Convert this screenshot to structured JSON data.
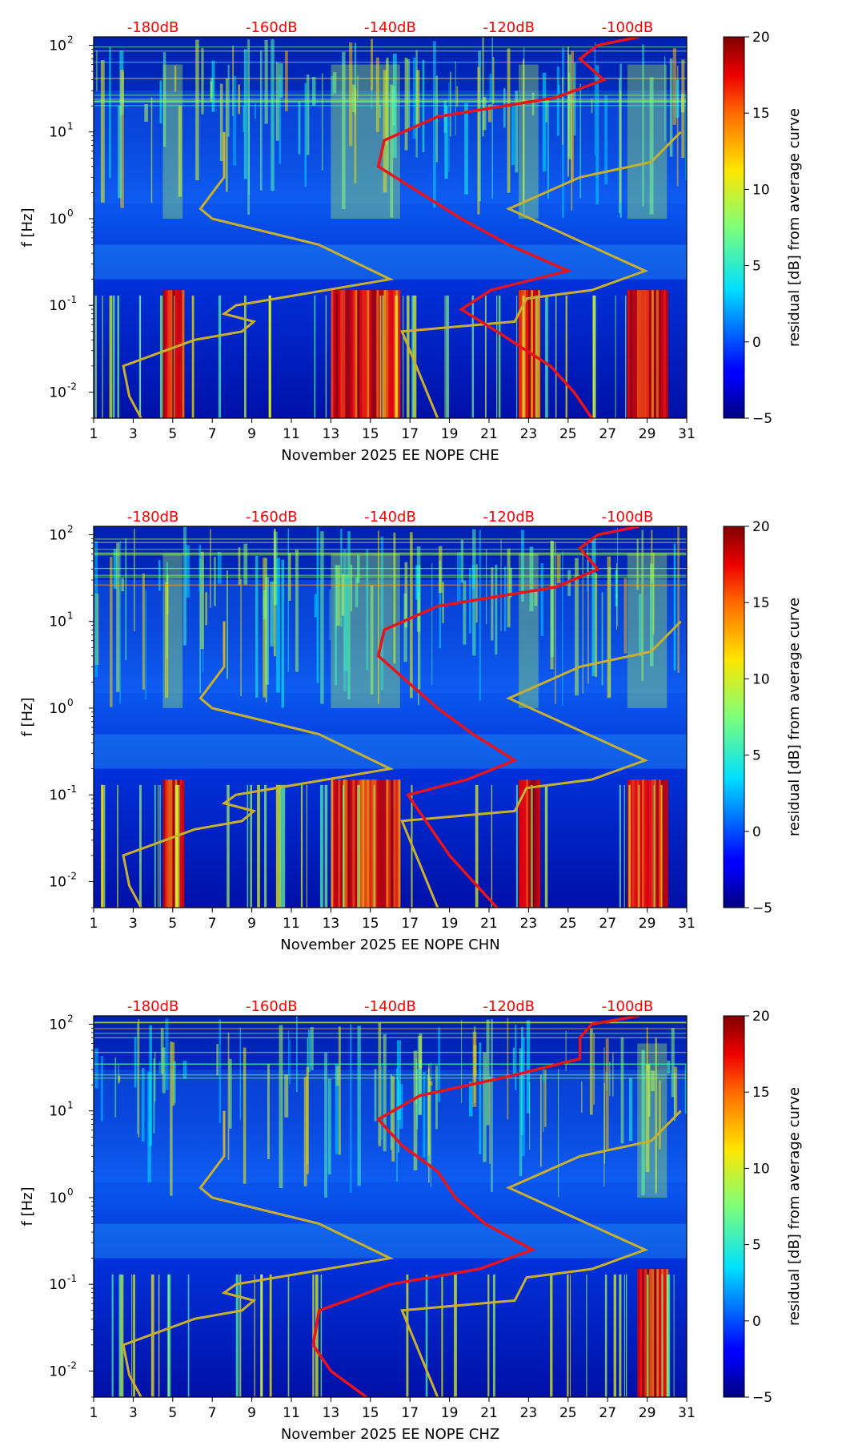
{
  "shared": {
    "y_axis_label": "f [Hz]",
    "y_ticks": [
      {
        "label_base": "10",
        "label_exp": "-2",
        "value": 0.01
      },
      {
        "label_base": "10",
        "label_exp": "-1",
        "value": 0.1
      },
      {
        "label_base": "10",
        "label_exp": "0",
        "value": 1
      },
      {
        "label_base": "10",
        "label_exp": "1",
        "value": 10
      },
      {
        "label_base": "10",
        "label_exp": "2",
        "value": 100
      }
    ],
    "x_ticks": [
      "1",
      "3",
      "5",
      "7",
      "9",
      "11",
      "13",
      "15",
      "17",
      "19",
      "21",
      "23",
      "25",
      "27",
      "29",
      "31"
    ],
    "top_db_labels": [
      "-180dB",
      "-160dB",
      "-140dB",
      "-120dB",
      "-100dB"
    ],
    "colorbar_label": "residual [dB] from average curve",
    "colorbar_ticks": [
      "20",
      "15",
      "10",
      "5",
      "0",
      "−5"
    ],
    "colors": {
      "db_label": "#ff0000",
      "psd_curve": "#e8141b",
      "noise_model": "#c8b02e"
    }
  },
  "chart_data": [
    {
      "type": "heatmap",
      "title": "",
      "xlabel": "November 2025 EE NOPE  CHE",
      "ylabel": "f [Hz]",
      "xlim": [
        1,
        31
      ],
      "ylim": [
        0.005,
        125
      ],
      "yscale": "log",
      "color_range": [
        -5,
        20
      ],
      "colormap": "jet",
      "overlay_db_axis": [
        -190,
        -90
      ],
      "high_residual_days": [
        [
          4.5,
          5.5
        ],
        [
          13,
          16.5
        ],
        [
          22.5,
          23.5
        ],
        [
          28,
          30
        ]
      ],
      "median_psd_db": [
        {
          "f": 0.005,
          "db": -106
        },
        {
          "f": 0.01,
          "db": -109
        },
        {
          "f": 0.02,
          "db": -113
        },
        {
          "f": 0.05,
          "db": -122
        },
        {
          "f": 0.09,
          "db": -128
        },
        {
          "f": 0.15,
          "db": -123
        },
        {
          "f": 0.25,
          "db": -110
        },
        {
          "f": 0.5,
          "db": -120
        },
        {
          "f": 1,
          "db": -128
        },
        {
          "f": 2,
          "db": -135
        },
        {
          "f": 4,
          "db": -142
        },
        {
          "f": 8,
          "db": -141
        },
        {
          "f": 15,
          "db": -132
        },
        {
          "f": 25,
          "db": -112
        },
        {
          "f": 40,
          "db": -104
        },
        {
          "f": 70,
          "db": -108
        },
        {
          "f": 100,
          "db": -105
        },
        {
          "f": 125,
          "db": -98
        }
      ],
      "noise_model_db": [
        {
          "f": 0.005,
          "db": -182
        },
        {
          "f": 0.009,
          "db": -184
        },
        {
          "f": 0.02,
          "db": -185
        },
        {
          "f": 0.04,
          "db": -173
        },
        {
          "f": 0.05,
          "db": -165
        },
        {
          "f": 0.065,
          "db": -163
        },
        {
          "f": 0.08,
          "db": -168
        },
        {
          "f": 0.1,
          "db": -166
        },
        {
          "f": 0.2,
          "db": -140
        },
        {
          "f": 0.5,
          "db": -152
        },
        {
          "f": 1,
          "db": -170
        },
        {
          "f": 1.3,
          "db": -172
        },
        {
          "f": 3,
          "db": -168
        },
        {
          "f": 10,
          "db": -168
        }
      ],
      "noise_model_high_db": [
        {
          "f": 0.005,
          "db": -132
        },
        {
          "f": 0.05,
          "db": -138
        },
        {
          "f": 0.065,
          "db": -119
        },
        {
          "f": 0.12,
          "db": -117
        },
        {
          "f": 0.15,
          "db": -106
        },
        {
          "f": 0.25,
          "db": -97
        },
        {
          "f": 1.3,
          "db": -120
        },
        {
          "f": 3,
          "db": -108
        },
        {
          "f": 4.5,
          "db": -96
        },
        {
          "f": 10,
          "db": -91
        }
      ]
    },
    {
      "type": "heatmap",
      "title": "",
      "xlabel": "November 2025 EE NOPE  CHN",
      "ylabel": "f [Hz]",
      "xlim": [
        1,
        31
      ],
      "ylim": [
        0.005,
        125
      ],
      "yscale": "log",
      "color_range": [
        -5,
        20
      ],
      "colormap": "jet",
      "overlay_db_axis": [
        -190,
        -90
      ],
      "high_residual_days": [
        [
          4.5,
          5.5
        ],
        [
          13,
          16.5
        ],
        [
          22.5,
          23.5
        ],
        [
          28,
          30
        ]
      ],
      "median_psd_db": [
        {
          "f": 0.005,
          "db": -122
        },
        {
          "f": 0.01,
          "db": -126
        },
        {
          "f": 0.02,
          "db": -130
        },
        {
          "f": 0.05,
          "db": -134
        },
        {
          "f": 0.1,
          "db": -137
        },
        {
          "f": 0.15,
          "db": -127
        },
        {
          "f": 0.25,
          "db": -119
        },
        {
          "f": 0.5,
          "db": -126
        },
        {
          "f": 1,
          "db": -132
        },
        {
          "f": 2,
          "db": -137
        },
        {
          "f": 4,
          "db": -142
        },
        {
          "f": 8,
          "db": -141
        },
        {
          "f": 15,
          "db": -132
        },
        {
          "f": 25,
          "db": -112
        },
        {
          "f": 40,
          "db": -105
        },
        {
          "f": 70,
          "db": -108
        },
        {
          "f": 100,
          "db": -105
        },
        {
          "f": 125,
          "db": -98
        }
      ],
      "noise_model_db": [
        {
          "f": 0.005,
          "db": -182
        },
        {
          "f": 0.009,
          "db": -184
        },
        {
          "f": 0.02,
          "db": -185
        },
        {
          "f": 0.04,
          "db": -173
        },
        {
          "f": 0.05,
          "db": -165
        },
        {
          "f": 0.065,
          "db": -163
        },
        {
          "f": 0.08,
          "db": -168
        },
        {
          "f": 0.1,
          "db": -166
        },
        {
          "f": 0.2,
          "db": -140
        },
        {
          "f": 0.5,
          "db": -152
        },
        {
          "f": 1,
          "db": -170
        },
        {
          "f": 1.3,
          "db": -172
        },
        {
          "f": 3,
          "db": -168
        },
        {
          "f": 10,
          "db": -168
        }
      ],
      "noise_model_high_db": [
        {
          "f": 0.005,
          "db": -132
        },
        {
          "f": 0.05,
          "db": -138
        },
        {
          "f": 0.065,
          "db": -119
        },
        {
          "f": 0.12,
          "db": -117
        },
        {
          "f": 0.15,
          "db": -106
        },
        {
          "f": 0.25,
          "db": -97
        },
        {
          "f": 1.3,
          "db": -120
        },
        {
          "f": 3,
          "db": -108
        },
        {
          "f": 4.5,
          "db": -96
        },
        {
          "f": 10,
          "db": -91
        }
      ]
    },
    {
      "type": "heatmap",
      "title": "",
      "xlabel": "November 2025 EE NOPE  CHZ",
      "ylabel": "f [Hz]",
      "xlim": [
        1,
        31
      ],
      "ylim": [
        0.005,
        125
      ],
      "yscale": "log",
      "color_range": [
        -5,
        20
      ],
      "colormap": "jet",
      "overlay_db_axis": [
        -190,
        -90
      ],
      "high_residual_days": [
        [
          28.5,
          30
        ]
      ],
      "median_psd_db": [
        {
          "f": 0.005,
          "db": -144
        },
        {
          "f": 0.01,
          "db": -150
        },
        {
          "f": 0.02,
          "db": -153
        },
        {
          "f": 0.05,
          "db": -152
        },
        {
          "f": 0.07,
          "db": -146
        },
        {
          "f": 0.1,
          "db": -140
        },
        {
          "f": 0.15,
          "db": -125
        },
        {
          "f": 0.25,
          "db": -116
        },
        {
          "f": 0.5,
          "db": -124
        },
        {
          "f": 1,
          "db": -129
        },
        {
          "f": 2,
          "db": -132
        },
        {
          "f": 4,
          "db": -138
        },
        {
          "f": 8,
          "db": -142
        },
        {
          "f": 15,
          "db": -135
        },
        {
          "f": 25,
          "db": -120
        },
        {
          "f": 40,
          "db": -108
        },
        {
          "f": 70,
          "db": -108
        },
        {
          "f": 100,
          "db": -106
        },
        {
          "f": 125,
          "db": -98
        }
      ],
      "noise_model_db": [
        {
          "f": 0.005,
          "db": -182
        },
        {
          "f": 0.009,
          "db": -184
        },
        {
          "f": 0.02,
          "db": -185
        },
        {
          "f": 0.04,
          "db": -173
        },
        {
          "f": 0.05,
          "db": -165
        },
        {
          "f": 0.065,
          "db": -163
        },
        {
          "f": 0.08,
          "db": -168
        },
        {
          "f": 0.1,
          "db": -166
        },
        {
          "f": 0.2,
          "db": -140
        },
        {
          "f": 0.5,
          "db": -152
        },
        {
          "f": 1,
          "db": -170
        },
        {
          "f": 1.3,
          "db": -172
        },
        {
          "f": 3,
          "db": -168
        },
        {
          "f": 10,
          "db": -168
        }
      ],
      "noise_model_high_db": [
        {
          "f": 0.005,
          "db": -132
        },
        {
          "f": 0.05,
          "db": -138
        },
        {
          "f": 0.065,
          "db": -119
        },
        {
          "f": 0.12,
          "db": -117
        },
        {
          "f": 0.15,
          "db": -106
        },
        {
          "f": 0.25,
          "db": -97
        },
        {
          "f": 1.3,
          "db": -120
        },
        {
          "f": 3,
          "db": -108
        },
        {
          "f": 4.5,
          "db": -96
        },
        {
          "f": 10,
          "db": -91
        }
      ]
    }
  ]
}
